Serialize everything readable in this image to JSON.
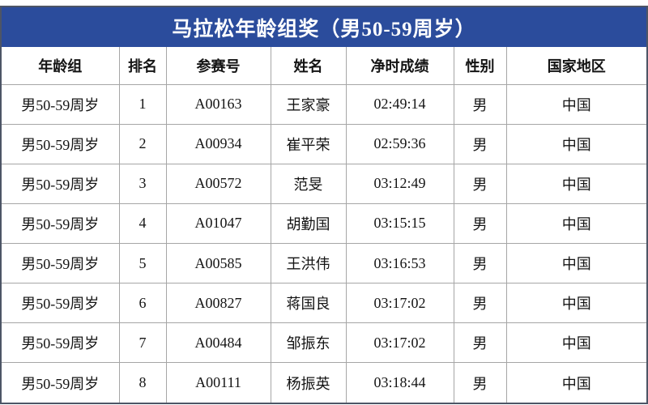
{
  "title": "马拉松年龄组奖（男50-59周岁）",
  "colors": {
    "banner": "#2b4c9c",
    "outer_border": "#4d5566",
    "grid_line": "#a6a6a6",
    "cell_text": "#141414",
    "title_text": "#ffffff"
  },
  "table": {
    "columns": [
      "年龄组",
      "排名",
      "参赛号",
      "姓名",
      "净时成绩",
      "性别",
      "国家地区"
    ],
    "column_keys": [
      "age-group",
      "rank",
      "bib-number",
      "name",
      "net-time",
      "gender",
      "country-region"
    ],
    "rows": [
      [
        "男50-59周岁",
        "1",
        "A00163",
        "王家豪",
        "02:49:14",
        "男",
        "中国"
      ],
      [
        "男50-59周岁",
        "2",
        "A00934",
        "崔平荣",
        "02:59:36",
        "男",
        "中国"
      ],
      [
        "男50-59周岁",
        "3",
        "A00572",
        "范旻",
        "03:12:49",
        "男",
        "中国"
      ],
      [
        "男50-59周岁",
        "4",
        "A01047",
        "胡勤国",
        "03:15:15",
        "男",
        "中国"
      ],
      [
        "男50-59周岁",
        "5",
        "A00585",
        "王洪伟",
        "03:16:53",
        "男",
        "中国"
      ],
      [
        "男50-59周岁",
        "6",
        "A00827",
        "蒋国良",
        "03:17:02",
        "男",
        "中国"
      ],
      [
        "男50-59周岁",
        "7",
        "A00484",
        "邹振东",
        "03:17:02",
        "男",
        "中国"
      ],
      [
        "男50-59周岁",
        "8",
        "A00111",
        "杨振英",
        "03:18:44",
        "男",
        "中国"
      ]
    ]
  }
}
